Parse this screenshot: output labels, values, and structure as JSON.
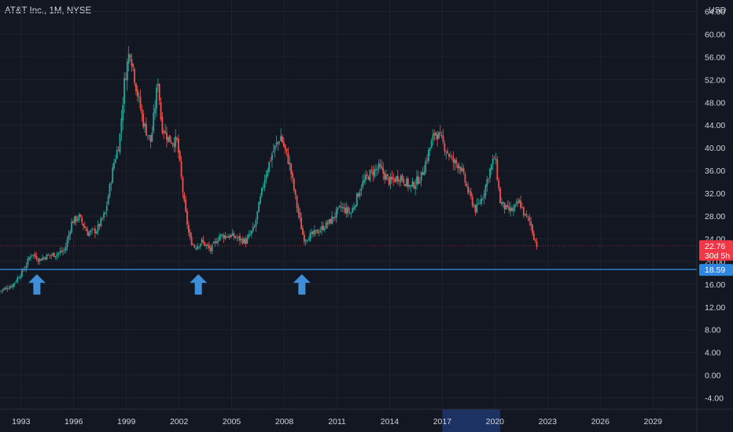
{
  "header": {
    "title": "AT&T Inc., 1M, NYSE",
    "currency": "USD"
  },
  "colors": {
    "background": "#131722",
    "grid": "#1e222d",
    "up": "#26a69a",
    "down": "#ef5350",
    "support_line": "#2e86de",
    "arrow": "#3f8ed8",
    "price_tag": "#f23645",
    "support_tag": "#2e86de"
  },
  "chart_data": {
    "type": "candlestick",
    "title": "AT&T Inc., 1M, NYSE",
    "y_axis": {
      "label": "USD",
      "min": -6,
      "max": 66,
      "ticks": [
        "64.00",
        "60.00",
        "56.00",
        "52.00",
        "48.00",
        "44.00",
        "40.00",
        "36.00",
        "32.00",
        "28.00",
        "24.00",
        "20.00",
        "16.00",
        "12.00",
        "8.00",
        "4.00",
        "0.00",
        "-4.00"
      ]
    },
    "x_axis": {
      "min": 1991.8,
      "max": 2031.5,
      "ticks": [
        "1993",
        "1996",
        "1999",
        "2002",
        "2005",
        "2008",
        "2011",
        "2014",
        "2017",
        "2020",
        "2023",
        "2026",
        "2029"
      ],
      "highlight_range": [
        2017,
        2020.3
      ]
    },
    "last_price": {
      "value": "22.76",
      "countdown": "30d 5h"
    },
    "support_level": {
      "value": "18.59"
    },
    "arrows": [
      1993.9,
      2003.1,
      2009.0
    ],
    "close_path": [
      [
        1991.8,
        14.8
      ],
      [
        1992.5,
        15.8
      ],
      [
        1993.2,
        18.8
      ],
      [
        1993.6,
        21.5
      ],
      [
        1994.0,
        20.3
      ],
      [
        1994.5,
        21.0
      ],
      [
        1995.0,
        21.3
      ],
      [
        1995.5,
        22.0
      ],
      [
        1995.9,
        27.0
      ],
      [
        1996.3,
        27.8
      ],
      [
        1996.8,
        25.0
      ],
      [
        1997.3,
        25.5
      ],
      [
        1997.8,
        28.5
      ],
      [
        1998.3,
        37.5
      ],
      [
        1998.6,
        41.0
      ],
      [
        1998.9,
        52.0
      ],
      [
        1999.2,
        57.5
      ],
      [
        1999.6,
        50.0
      ],
      [
        2000.0,
        44.0
      ],
      [
        2000.4,
        41.0
      ],
      [
        2000.8,
        52.0
      ],
      [
        2001.0,
        44.0
      ],
      [
        2001.4,
        41.5
      ],
      [
        2001.9,
        41.0
      ],
      [
        2002.3,
        30.0
      ],
      [
        2002.6,
        24.0
      ],
      [
        2002.9,
        22.5
      ],
      [
        2003.3,
        23.5
      ],
      [
        2003.8,
        22.0
      ],
      [
        2004.3,
        24.5
      ],
      [
        2005.0,
        24.5
      ],
      [
        2005.8,
        23.5
      ],
      [
        2006.3,
        26.0
      ],
      [
        2006.9,
        35.0
      ],
      [
        2007.3,
        39.0
      ],
      [
        2007.8,
        42.0
      ],
      [
        2008.3,
        37.0
      ],
      [
        2008.7,
        30.0
      ],
      [
        2009.1,
        24.0
      ],
      [
        2009.5,
        24.5
      ],
      [
        2010.0,
        25.5
      ],
      [
        2010.6,
        27.0
      ],
      [
        2011.2,
        29.5
      ],
      [
        2011.8,
        28.5
      ],
      [
        2012.4,
        33.5
      ],
      [
        2012.9,
        35.5
      ],
      [
        2013.4,
        36.5
      ],
      [
        2014.0,
        34.0
      ],
      [
        2014.6,
        35.0
      ],
      [
        2015.2,
        33.0
      ],
      [
        2015.8,
        35.0
      ],
      [
        2016.3,
        40.0
      ],
      [
        2016.6,
        43.0
      ],
      [
        2017.0,
        41.0
      ],
      [
        2017.6,
        37.5
      ],
      [
        2018.0,
        37.0
      ],
      [
        2018.5,
        32.0
      ],
      [
        2018.9,
        29.0
      ],
      [
        2019.3,
        31.5
      ],
      [
        2019.7,
        36.0
      ],
      [
        2020.0,
        38.5
      ],
      [
        2020.3,
        30.5
      ],
      [
        2020.7,
        29.0
      ],
      [
        2021.0,
        29.0
      ],
      [
        2021.4,
        30.5
      ],
      [
        2021.7,
        28.0
      ],
      [
        2022.0,
        27.0
      ],
      [
        2022.2,
        24.5
      ],
      [
        2022.4,
        22.76
      ]
    ]
  }
}
